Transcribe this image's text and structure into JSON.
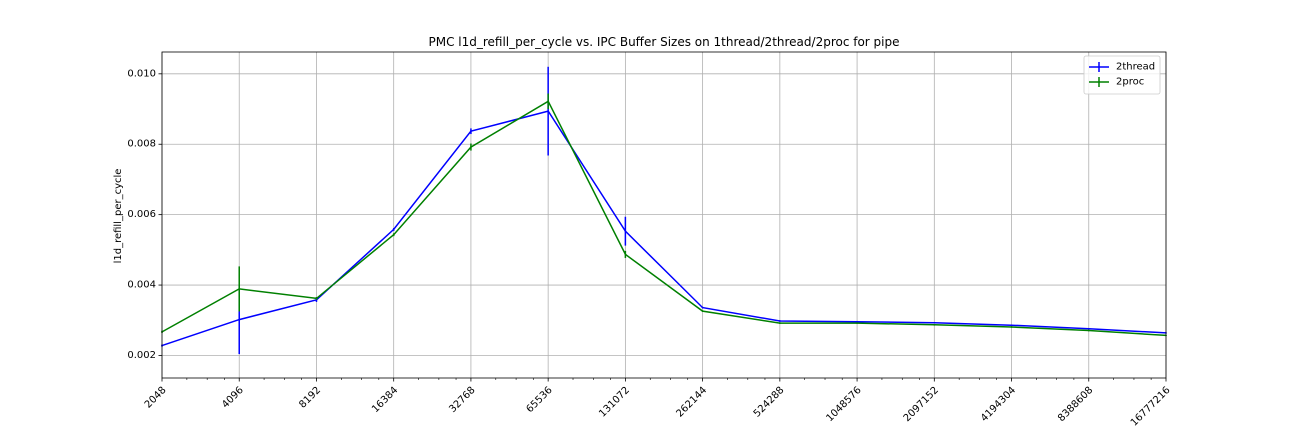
{
  "chart_data": {
    "type": "line",
    "title": "PMC l1d_refill_per_cycle vs. IPC Buffer Sizes on 1thread/2thread/2proc for pipe",
    "xlabel": "",
    "ylabel": "l1d_refill_per_cycle",
    "x_scale": "log2",
    "categories": [
      "2048",
      "4096",
      "8192",
      "16384",
      "32768",
      "65536",
      "131072",
      "262144",
      "524288",
      "1048576",
      "2097152",
      "4194304",
      "8388608",
      "16777216"
    ],
    "x": [
      2048,
      4096,
      8192,
      16384,
      32768,
      65536,
      131072,
      262144,
      524288,
      1048576,
      2097152,
      4194304,
      8388608,
      16777216
    ],
    "ylim": [
      0.00136,
      0.01062
    ],
    "yticks": [
      0.002,
      0.004,
      0.006,
      0.008,
      0.01
    ],
    "ytick_labels": [
      "0.002",
      "0.004",
      "0.006",
      "0.008",
      "0.010"
    ],
    "grid": true,
    "legend_position": "top-right",
    "series": [
      {
        "name": "2thread",
        "color": "#0000ff",
        "values": [
          0.00228,
          0.00302,
          0.00358,
          0.00558,
          0.00837,
          0.00894,
          0.00553,
          0.00336,
          0.00298,
          0.00296,
          0.00293,
          0.00286,
          0.00276,
          0.00264
        ],
        "errors": [
          3e-05,
          0.00098,
          6e-05,
          4e-05,
          8e-05,
          0.00126,
          0.00041,
          2e-05,
          2e-05,
          1e-05,
          2e-05,
          2e-05,
          2e-05,
          1e-05
        ]
      },
      {
        "name": "2proc",
        "color": "#008000",
        "values": [
          0.00267,
          0.00389,
          0.00362,
          0.00543,
          0.00792,
          0.00922,
          0.00487,
          0.00326,
          0.00292,
          0.00292,
          0.00287,
          0.00281,
          0.00271,
          0.00257
        ],
        "errors": [
          3e-05,
          0.00064,
          4e-05,
          4e-05,
          0.0001,
          0.00022,
          0.0001,
          2e-05,
          2e-05,
          1e-05,
          2e-05,
          2e-05,
          2e-05,
          1e-05
        ]
      }
    ]
  }
}
